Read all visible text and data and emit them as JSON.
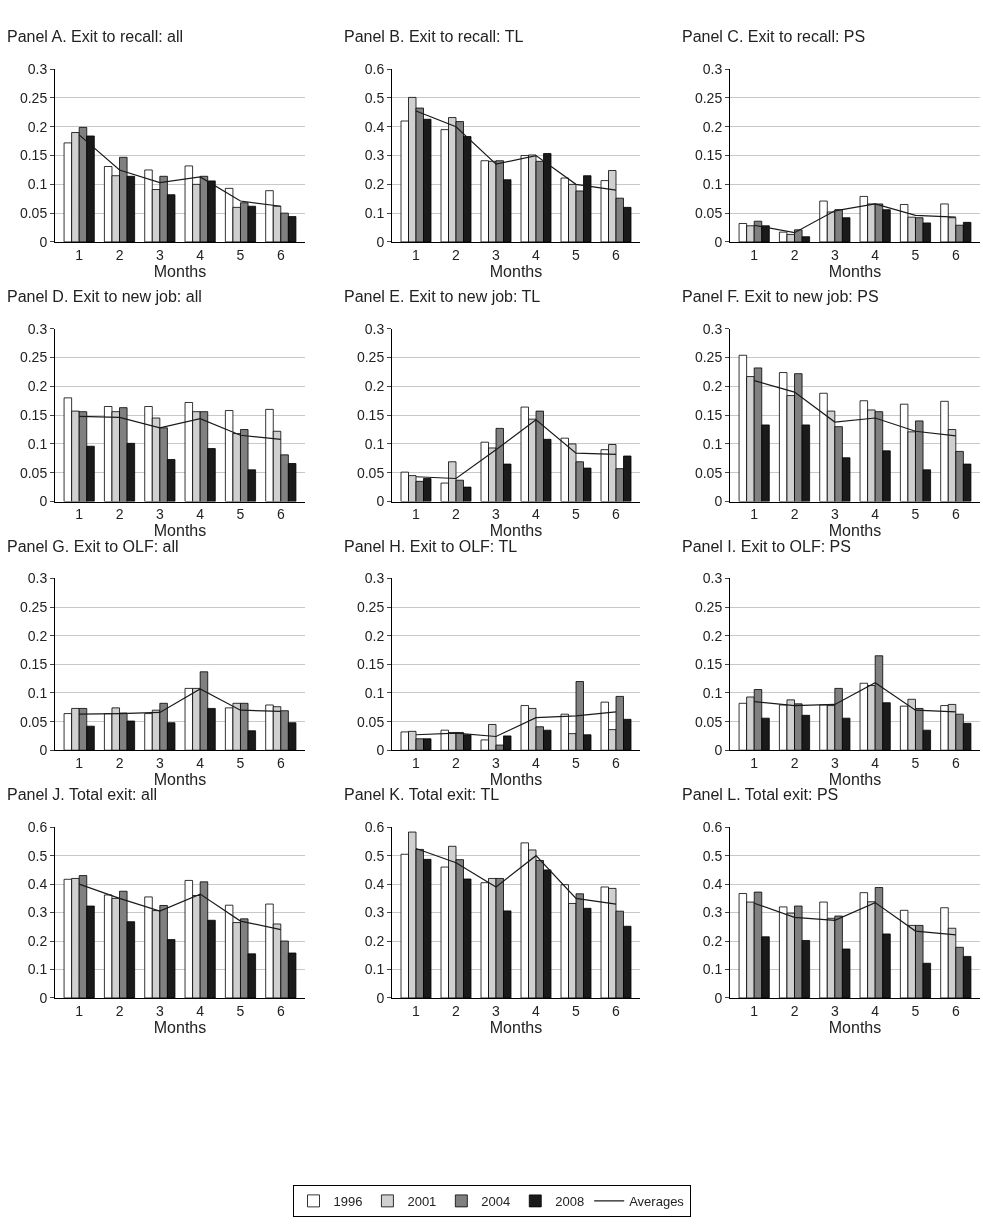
{
  "chart_data": [
    {
      "type": "bar",
      "title": "Panel A. Exit to recall: all",
      "xlabel": "Months",
      "legend": "bottom",
      "categories": [
        "1",
        "2",
        "3",
        "4",
        "5",
        "6"
      ],
      "ylim": [
        0,
        0.3
      ],
      "yticks": [
        0,
        0.05,
        0.1,
        0.15,
        0.2,
        0.25,
        0.3
      ],
      "grid": "y",
      "series": [
        {
          "name": "1996",
          "color": "#ffffff",
          "values": [
            0.172,
            0.131,
            0.125,
            0.132,
            0.093,
            0.089
          ]
        },
        {
          "name": "2001",
          "color": "#d0d0d0",
          "values": [
            0.19,
            0.115,
            0.091,
            0.1,
            0.06,
            0.062
          ]
        },
        {
          "name": "2004",
          "color": "#808080",
          "values": [
            0.199,
            0.147,
            0.114,
            0.114,
            0.068,
            0.05
          ]
        },
        {
          "name": "2008",
          "color": "#1a1a1a",
          "values": [
            0.184,
            0.114,
            0.082,
            0.106,
            0.062,
            0.044
          ]
        },
        {
          "name": "Averages",
          "type": "line",
          "color": "#1a1a1a",
          "values": [
            0.186,
            0.125,
            0.103,
            0.113,
            0.071,
            0.062
          ]
        }
      ]
    },
    {
      "type": "bar",
      "title": "Panel B. Exit to recall: TL",
      "xlabel": "Months",
      "categories": [
        "1",
        "2",
        "3",
        "4",
        "5",
        "6"
      ],
      "ylim": [
        0,
        0.6
      ],
      "yticks": [
        0,
        0.1,
        0.2,
        0.3,
        0.4,
        0.5,
        0.6
      ],
      "grid": "y",
      "series": [
        {
          "name": "1996",
          "color": "#ffffff",
          "values": [
            0.42,
            0.39,
            0.282,
            0.3,
            0.222,
            0.213
          ]
        },
        {
          "name": "2001",
          "color": "#d0d0d0",
          "values": [
            0.502,
            0.432,
            0.28,
            0.302,
            0.2,
            0.248
          ]
        },
        {
          "name": "2004",
          "color": "#808080",
          "values": [
            0.465,
            0.418,
            0.282,
            0.28,
            0.177,
            0.152
          ]
        },
        {
          "name": "2008",
          "color": "#1a1a1a",
          "values": [
            0.426,
            0.366,
            0.216,
            0.307,
            0.23,
            0.12
          ]
        },
        {
          "name": "Averages",
          "type": "line",
          "color": "#1a1a1a",
          "values": [
            0.455,
            0.4,
            0.27,
            0.3,
            0.2,
            0.18
          ]
        }
      ]
    },
    {
      "type": "bar",
      "title": "Panel C. Exit to recall: PS",
      "xlabel": "Months",
      "categories": [
        "1",
        "2",
        "3",
        "4",
        "5",
        "6"
      ],
      "ylim": [
        0,
        0.3
      ],
      "yticks": [
        0,
        0.05,
        0.1,
        0.15,
        0.2,
        0.25,
        0.3
      ],
      "grid": "y",
      "series": [
        {
          "name": "1996",
          "color": "#ffffff",
          "values": [
            0.032,
            0.017,
            0.071,
            0.079,
            0.065,
            0.066
          ]
        },
        {
          "name": "2001",
          "color": "#d0d0d0",
          "values": [
            0.028,
            0.013,
            0.052,
            0.066,
            0.043,
            0.042
          ]
        },
        {
          "name": "2004",
          "color": "#808080",
          "values": [
            0.036,
            0.021,
            0.056,
            0.066,
            0.042,
            0.029
          ]
        },
        {
          "name": "2008",
          "color": "#1a1a1a",
          "values": [
            0.028,
            0.009,
            0.042,
            0.056,
            0.033,
            0.034
          ]
        },
        {
          "name": "Averages",
          "type": "line",
          "color": "#1a1a1a",
          "values": [
            0.029,
            0.016,
            0.054,
            0.066,
            0.046,
            0.043
          ]
        }
      ]
    },
    {
      "type": "bar",
      "title": "Panel D. Exit to new job: all",
      "xlabel": "Months",
      "categories": [
        "1",
        "2",
        "3",
        "4",
        "5",
        "6"
      ],
      "ylim": [
        0,
        0.3
      ],
      "yticks": [
        0,
        0.05,
        0.1,
        0.15,
        0.2,
        0.25,
        0.3
      ],
      "grid": "y",
      "series": [
        {
          "name": "1996",
          "color": "#ffffff",
          "values": [
            0.18,
            0.165,
            0.165,
            0.172,
            0.158,
            0.16
          ]
        },
        {
          "name": "2001",
          "color": "#d0d0d0",
          "values": [
            0.157,
            0.156,
            0.145,
            0.156,
            0.118,
            0.122
          ]
        },
        {
          "name": "2004",
          "color": "#808080",
          "values": [
            0.156,
            0.163,
            0.128,
            0.156,
            0.125,
            0.081
          ]
        },
        {
          "name": "2008",
          "color": "#1a1a1a",
          "values": [
            0.096,
            0.101,
            0.073,
            0.092,
            0.055,
            0.066
          ]
        },
        {
          "name": "Averages",
          "type": "line",
          "color": "#1a1a1a",
          "values": [
            0.148,
            0.146,
            0.128,
            0.144,
            0.115,
            0.108
          ]
        }
      ]
    },
    {
      "type": "bar",
      "title": "Panel E. Exit to new job: TL",
      "xlabel": "Months",
      "categories": [
        "1",
        "2",
        "3",
        "4",
        "5",
        "6"
      ],
      "ylim": [
        0,
        0.3
      ],
      "yticks": [
        0,
        0.05,
        0.1,
        0.15,
        0.2,
        0.25,
        0.3
      ],
      "grid": "y",
      "series": [
        {
          "name": "1996",
          "color": "#ffffff",
          "values": [
            0.051,
            0.032,
            0.103,
            0.164,
            0.11,
            0.09
          ]
        },
        {
          "name": "2001",
          "color": "#d0d0d0",
          "values": [
            0.045,
            0.069,
            0.093,
            0.143,
            0.1,
            0.099
          ]
        },
        {
          "name": "2004",
          "color": "#808080",
          "values": [
            0.035,
            0.037,
            0.127,
            0.157,
            0.069,
            0.057
          ]
        },
        {
          "name": "2008",
          "color": "#1a1a1a",
          "values": [
            0.04,
            0.025,
            0.065,
            0.108,
            0.058,
            0.079
          ]
        },
        {
          "name": "Averages",
          "type": "line",
          "color": "#1a1a1a",
          "values": [
            0.043,
            0.04,
            0.09,
            0.142,
            0.084,
            0.082
          ]
        }
      ]
    },
    {
      "type": "bar",
      "title": "Panel F. Exit to new job: PS",
      "xlabel": "Months",
      "categories": [
        "1",
        "2",
        "3",
        "4",
        "5",
        "6"
      ],
      "ylim": [
        0,
        0.3
      ],
      "yticks": [
        0,
        0.05,
        0.1,
        0.15,
        0.2,
        0.25,
        0.3
      ],
      "grid": "y",
      "series": [
        {
          "name": "1996",
          "color": "#ffffff",
          "values": [
            0.254,
            0.224,
            0.188,
            0.175,
            0.169,
            0.174
          ]
        },
        {
          "name": "2001",
          "color": "#d0d0d0",
          "values": [
            0.217,
            0.184,
            0.157,
            0.159,
            0.121,
            0.125
          ]
        },
        {
          "name": "2004",
          "color": "#808080",
          "values": [
            0.232,
            0.222,
            0.13,
            0.156,
            0.14,
            0.087
          ]
        },
        {
          "name": "2008",
          "color": "#1a1a1a",
          "values": [
            0.133,
            0.133,
            0.076,
            0.088,
            0.055,
            0.065
          ]
        },
        {
          "name": "Averages",
          "type": "line",
          "color": "#1a1a1a",
          "values": [
            0.21,
            0.19,
            0.138,
            0.145,
            0.122,
            0.114
          ]
        }
      ]
    },
    {
      "type": "bar",
      "title": "Panel G. Exit to OLF: all",
      "xlabel": "Months",
      "categories": [
        "1",
        "2",
        "3",
        "4",
        "5",
        "6"
      ],
      "ylim": [
        0,
        0.3
      ],
      "yticks": [
        0,
        0.05,
        0.1,
        0.15,
        0.2,
        0.25,
        0.3
      ],
      "grid": "y",
      "series": [
        {
          "name": "1996",
          "color": "#ffffff",
          "values": [
            0.064,
            0.064,
            0.064,
            0.108,
            0.074,
            0.079
          ]
        },
        {
          "name": "2001",
          "color": "#d0d0d0",
          "values": [
            0.073,
            0.074,
            0.07,
            0.108,
            0.082,
            0.076
          ]
        },
        {
          "name": "2004",
          "color": "#808080",
          "values": [
            0.073,
            0.065,
            0.082,
            0.137,
            0.082,
            0.069
          ]
        },
        {
          "name": "2008",
          "color": "#1a1a1a",
          "values": [
            0.042,
            0.051,
            0.048,
            0.073,
            0.034,
            0.048
          ]
        },
        {
          "name": "Averages",
          "type": "line",
          "color": "#1a1a1a",
          "values": [
            0.063,
            0.064,
            0.066,
            0.107,
            0.07,
            0.068
          ]
        }
      ]
    },
    {
      "type": "bar",
      "title": "Panel H. Exit to OLF: TL",
      "xlabel": "Months",
      "categories": [
        "1",
        "2",
        "3",
        "4",
        "5",
        "6"
      ],
      "ylim": [
        0,
        0.3
      ],
      "yticks": [
        0,
        0.05,
        0.1,
        0.15,
        0.2,
        0.25,
        0.3
      ],
      "grid": "y",
      "series": [
        {
          "name": "1996",
          "color": "#ffffff",
          "values": [
            0.032,
            0.035,
            0.018,
            0.078,
            0.063,
            0.084
          ]
        },
        {
          "name": "2001",
          "color": "#d0d0d0",
          "values": [
            0.033,
            0.031,
            0.045,
            0.073,
            0.029,
            0.036
          ]
        },
        {
          "name": "2004",
          "color": "#808080",
          "values": [
            0.02,
            0.031,
            0.009,
            0.041,
            0.12,
            0.094
          ]
        },
        {
          "name": "2008",
          "color": "#1a1a1a",
          "values": [
            0.02,
            0.027,
            0.025,
            0.035,
            0.027,
            0.054
          ]
        },
        {
          "name": "Averages",
          "type": "line",
          "color": "#1a1a1a",
          "values": [
            0.027,
            0.03,
            0.024,
            0.057,
            0.06,
            0.067
          ]
        }
      ]
    },
    {
      "type": "bar",
      "title": "Panel I. Exit to OLF: PS",
      "xlabel": "Months",
      "categories": [
        "1",
        "2",
        "3",
        "4",
        "5",
        "6"
      ],
      "ylim": [
        0,
        0.3
      ],
      "yticks": [
        0,
        0.05,
        0.1,
        0.15,
        0.2,
        0.25,
        0.3
      ],
      "grid": "y",
      "series": [
        {
          "name": "1996",
          "color": "#ffffff",
          "values": [
            0.082,
            0.079,
            0.079,
            0.117,
            0.077,
            0.078
          ]
        },
        {
          "name": "2001",
          "color": "#d0d0d0",
          "values": [
            0.093,
            0.088,
            0.078,
            0.113,
            0.089,
            0.08
          ]
        },
        {
          "name": "2004",
          "color": "#808080",
          "values": [
            0.106,
            0.081,
            0.108,
            0.165,
            0.073,
            0.063
          ]
        },
        {
          "name": "2008",
          "color": "#1a1a1a",
          "values": [
            0.056,
            0.061,
            0.056,
            0.083,
            0.035,
            0.047
          ]
        },
        {
          "name": "Averages",
          "type": "line",
          "color": "#1a1a1a",
          "values": [
            0.085,
            0.078,
            0.08,
            0.118,
            0.07,
            0.067
          ]
        }
      ]
    },
    {
      "type": "bar",
      "title": "Panel J. Total exit: all",
      "xlabel": "Months",
      "categories": [
        "1",
        "2",
        "3",
        "4",
        "5",
        "6"
      ],
      "ylim": [
        0,
        0.6
      ],
      "yticks": [
        0,
        0.1,
        0.2,
        0.3,
        0.4,
        0.5,
        0.6
      ],
      "grid": "y",
      "series": [
        {
          "name": "1996",
          "color": "#ffffff",
          "values": [
            0.417,
            0.362,
            0.355,
            0.413,
            0.326,
            0.33
          ]
        },
        {
          "name": "2001",
          "color": "#d0d0d0",
          "values": [
            0.42,
            0.35,
            0.307,
            0.36,
            0.265,
            0.26
          ]
        },
        {
          "name": "2004",
          "color": "#808080",
          "values": [
            0.43,
            0.375,
            0.325,
            0.408,
            0.278,
            0.2
          ]
        },
        {
          "name": "2008",
          "color": "#1a1a1a",
          "values": [
            0.323,
            0.268,
            0.205,
            0.273,
            0.155,
            0.158
          ]
        },
        {
          "name": "Averages",
          "type": "line",
          "color": "#1a1a1a",
          "values": [
            0.4,
            0.35,
            0.305,
            0.365,
            0.27,
            0.24
          ]
        }
      ]
    },
    {
      "type": "bar",
      "title": "Panel K. Total exit: TL",
      "xlabel": "Months",
      "categories": [
        "1",
        "2",
        "3",
        "4",
        "5",
        "6"
      ],
      "ylim": [
        0,
        0.6
      ],
      "yticks": [
        0,
        0.1,
        0.2,
        0.3,
        0.4,
        0.5,
        0.6
      ],
      "grid": "y",
      "series": [
        {
          "name": "1996",
          "color": "#ffffff",
          "values": [
            0.505,
            0.46,
            0.405,
            0.545,
            0.398,
            0.39
          ]
        },
        {
          "name": "2001",
          "color": "#d0d0d0",
          "values": [
            0.583,
            0.533,
            0.42,
            0.52,
            0.332,
            0.385
          ]
        },
        {
          "name": "2004",
          "color": "#808080",
          "values": [
            0.522,
            0.486,
            0.42,
            0.483,
            0.366,
            0.305
          ]
        },
        {
          "name": "2008",
          "color": "#1a1a1a",
          "values": [
            0.487,
            0.418,
            0.306,
            0.45,
            0.315,
            0.252
          ]
        },
        {
          "name": "Averages",
          "type": "line",
          "color": "#1a1a1a",
          "values": [
            0.525,
            0.475,
            0.39,
            0.5,
            0.35,
            0.33
          ]
        }
      ]
    },
    {
      "type": "bar",
      "title": "Panel L. Total exit: PS",
      "xlabel": "Months",
      "categories": [
        "1",
        "2",
        "3",
        "4",
        "5",
        "6"
      ],
      "ylim": [
        0,
        0.6
      ],
      "yticks": [
        0,
        0.1,
        0.2,
        0.3,
        0.4,
        0.5,
        0.6
      ],
      "grid": "y",
      "series": [
        {
          "name": "1996",
          "color": "#ffffff",
          "values": [
            0.367,
            0.32,
            0.337,
            0.37,
            0.308,
            0.317
          ]
        },
        {
          "name": "2001",
          "color": "#d0d0d0",
          "values": [
            0.337,
            0.298,
            0.28,
            0.338,
            0.255,
            0.245
          ]
        },
        {
          "name": "2004",
          "color": "#808080",
          "values": [
            0.372,
            0.323,
            0.288,
            0.388,
            0.255,
            0.178
          ]
        },
        {
          "name": "2008",
          "color": "#1a1a1a",
          "values": [
            0.215,
            0.202,
            0.172,
            0.225,
            0.122,
            0.146
          ]
        },
        {
          "name": "Averages",
          "type": "line",
          "color": "#1a1a1a",
          "values": [
            0.333,
            0.283,
            0.273,
            0.335,
            0.235,
            0.222
          ]
        }
      ]
    }
  ]
}
